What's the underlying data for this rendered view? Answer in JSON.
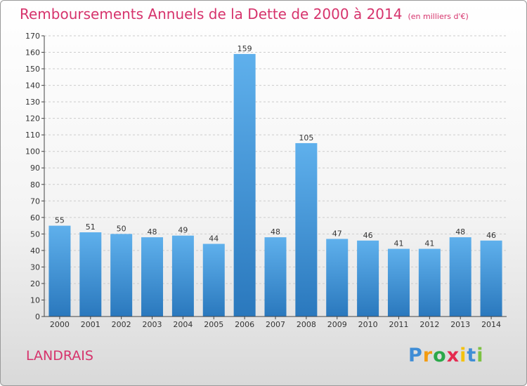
{
  "header": {
    "title": "Remboursements Annuels de la Dette de 2000 à 2014",
    "unit": "(en milliers d'€)"
  },
  "footer": {
    "town": "LANDRAIS",
    "logo_text": "Proxiti"
  },
  "colors": {
    "title": "#d6336c",
    "bar_top": "#5fb0ec",
    "bar_bottom": "#2a78bd",
    "grid": "#cccccc"
  },
  "chart_data": {
    "type": "bar",
    "title": "Remboursements Annuels de la Dette de 2000 à 2014",
    "xlabel": "",
    "ylabel": "",
    "categories": [
      "2000",
      "2001",
      "2002",
      "2003",
      "2004",
      "2005",
      "2006",
      "2007",
      "2008",
      "2009",
      "2010",
      "2011",
      "2012",
      "2013",
      "2014"
    ],
    "values": [
      55,
      51,
      50,
      48,
      49,
      44,
      159,
      48,
      105,
      47,
      46,
      41,
      41,
      48,
      46
    ],
    "ylim": [
      0,
      170
    ],
    "yticks": [
      0,
      10,
      20,
      30,
      40,
      50,
      60,
      70,
      80,
      90,
      100,
      110,
      120,
      130,
      140,
      150,
      160,
      170
    ],
    "grid": "horizontal-dashed",
    "data_labels": true
  }
}
